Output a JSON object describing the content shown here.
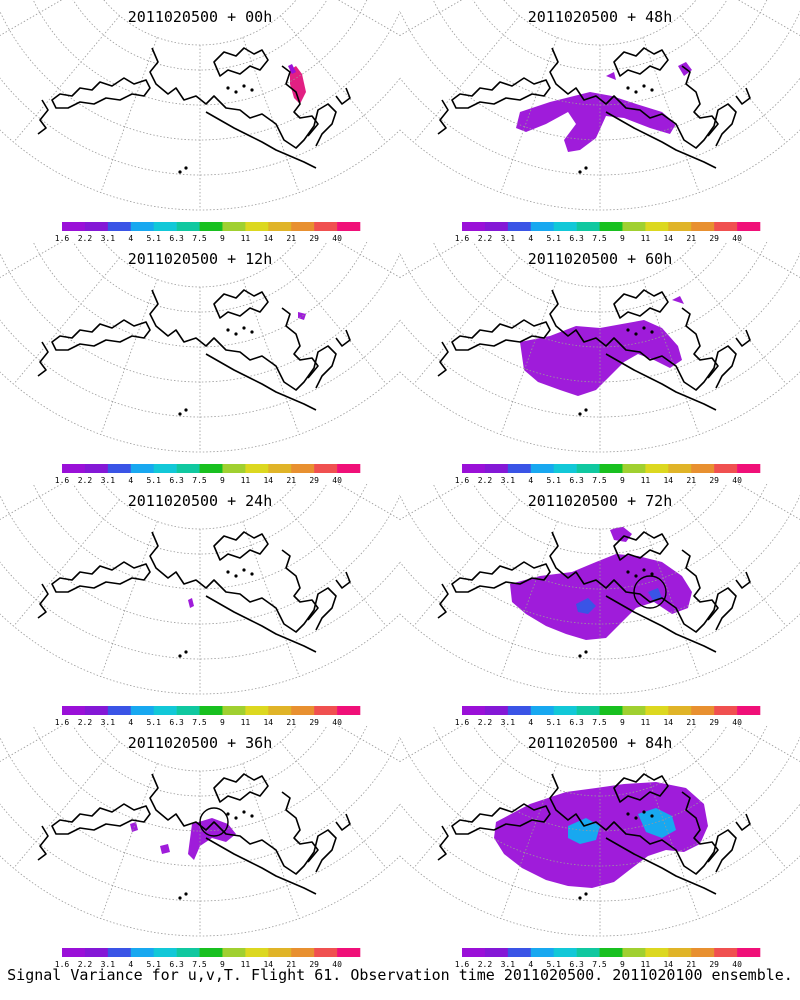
{
  "caption": "Signal Variance for u,v,T. Flight 61. Observation time 2011020500. 2011020100 ensemble.",
  "chart_data": {
    "type": "heatmap",
    "colorbar": {
      "ticks": [
        "1.6",
        "2.2",
        "3.1",
        "4",
        "5.1",
        "6.3",
        "7.5",
        "9",
        "11",
        "14",
        "21",
        "29",
        "40"
      ],
      "colors": [
        "#9a10d8",
        "#8418d6",
        "#3a54e6",
        "#18a8f0",
        "#12c8d8",
        "#10c8a0",
        "#18c020",
        "#a0d030",
        "#dcd820",
        "#e0b428",
        "#e89030",
        "#f05050",
        "#f01078"
      ]
    },
    "panels": [
      {
        "title": "2011020500 + 00h",
        "lead_hours": 0,
        "max_level": "40"
      },
      {
        "title": "2011020500 + 48h",
        "lead_hours": 48,
        "max_level": "2.2"
      },
      {
        "title": "2011020500 + 12h",
        "lead_hours": 12,
        "max_level": "2.2"
      },
      {
        "title": "2011020500 + 60h",
        "lead_hours": 60,
        "max_level": "2.2"
      },
      {
        "title": "2011020500 + 24h",
        "lead_hours": 24,
        "max_level": "2.2"
      },
      {
        "title": "2011020500 + 72h",
        "lead_hours": 72,
        "max_level": "3.1"
      },
      {
        "title": "2011020500 + 36h",
        "lead_hours": 36,
        "max_level": "2.2"
      },
      {
        "title": "2011020500 + 84h",
        "lead_hours": 84,
        "max_level": "5.1"
      }
    ]
  }
}
